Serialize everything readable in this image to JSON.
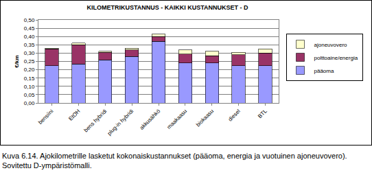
{
  "chart_data": {
    "type": "bar",
    "title": "KILOMETRIKUSTANNUS - KAIKKI KUSTANNUKSET - D",
    "y_label": "€/km",
    "caption": "Kuva 6.14. Ajokilometrille lasketut kokonaiskustannukset (pääoma, energia ja vuotuinen ajoneuvovero). Sovitettu D-ympäristömalli.",
    "categories": [
      "bensiini",
      "EtOH",
      "bens hybridi",
      "plug-in hybridi",
      "akkusähkö",
      "maakaasu",
      "biokaasu",
      "diesel",
      "BTL"
    ],
    "series": [
      {
        "name": "pääoma",
        "color": "#9999ff",
        "values": [
          0.225,
          0.235,
          0.26,
          0.28,
          0.37,
          0.24,
          0.24,
          0.225,
          0.225
        ]
      },
      {
        "name": "polttoaine/energia",
        "color": "#993366",
        "values": [
          0.1,
          0.115,
          0.045,
          0.04,
          0.03,
          0.055,
          0.045,
          0.065,
          0.075
        ]
      },
      {
        "name": "ajoneuvovero",
        "color": "#ffffcc",
        "values": [
          0.005,
          0.01,
          0.005,
          0.01,
          0.015,
          0.025,
          0.025,
          0.015,
          0.025
        ]
      }
    ],
    "stacked": true,
    "grid": true,
    "legend": "right",
    "ylim": [
      0,
      0.5
    ],
    "yticks": [
      {
        "value": 0,
        "label": "0,00"
      },
      {
        "value": 0.05,
        "label": "0,05"
      },
      {
        "value": 0.1,
        "label": "0,10"
      },
      {
        "value": 0.15,
        "label": "0,15"
      },
      {
        "value": 0.2,
        "label": "0,20"
      },
      {
        "value": 0.25,
        "label": "0,25"
      },
      {
        "value": 0.3,
        "label": "0,30"
      },
      {
        "value": 0.35,
        "label": "0,35"
      },
      {
        "value": 0.4,
        "label": "0,40"
      },
      {
        "value": 0.45,
        "label": "0,45"
      },
      {
        "value": 0.5,
        "label": "0,50"
      }
    ]
  }
}
